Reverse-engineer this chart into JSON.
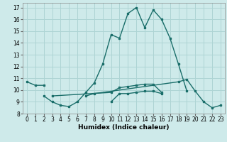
{
  "title": "",
  "xlabel": "Humidex (Indice chaleur)",
  "bg_color": "#ceeaea",
  "grid_color": "#aed4d4",
  "line_color": "#1a6e6a",
  "xlim": [
    -0.5,
    23.5
  ],
  "ylim": [
    8,
    17.4
  ],
  "yticks": [
    8,
    9,
    10,
    11,
    12,
    13,
    14,
    15,
    16,
    17
  ],
  "xticks": [
    0,
    1,
    2,
    3,
    4,
    5,
    6,
    7,
    8,
    9,
    10,
    11,
    12,
    13,
    14,
    15,
    16,
    17,
    18,
    19,
    20,
    21,
    22,
    23
  ],
  "lines": [
    {
      "x": [
        0,
        1,
        2
      ],
      "y": [
        10.7,
        10.4,
        10.4
      ]
    },
    {
      "x": [
        2,
        3,
        4,
        5,
        6,
        7,
        8,
        9,
        10,
        11,
        12,
        13,
        14,
        15,
        16,
        17,
        18,
        19
      ],
      "y": [
        9.5,
        9.0,
        8.7,
        8.6,
        9.0,
        9.8,
        10.6,
        12.2,
        14.7,
        14.4,
        16.5,
        17.0,
        15.3,
        16.8,
        16.0,
        14.4,
        12.2,
        9.9
      ]
    },
    {
      "x": [
        3,
        10,
        11,
        12,
        13,
        14,
        15,
        16
      ],
      "y": [
        9.5,
        9.8,
        10.2,
        10.3,
        10.4,
        10.5,
        10.5,
        9.8
      ]
    },
    {
      "x": [
        10,
        11,
        12,
        13,
        14,
        15,
        16
      ],
      "y": [
        9.0,
        9.7,
        9.7,
        9.8,
        9.9,
        9.9,
        9.7
      ]
    },
    {
      "x": [
        7,
        8,
        18,
        19,
        20,
        21,
        22,
        23
      ],
      "y": [
        9.5,
        9.7,
        10.7,
        10.9,
        9.9,
        9.0,
        8.5,
        8.7
      ]
    }
  ]
}
